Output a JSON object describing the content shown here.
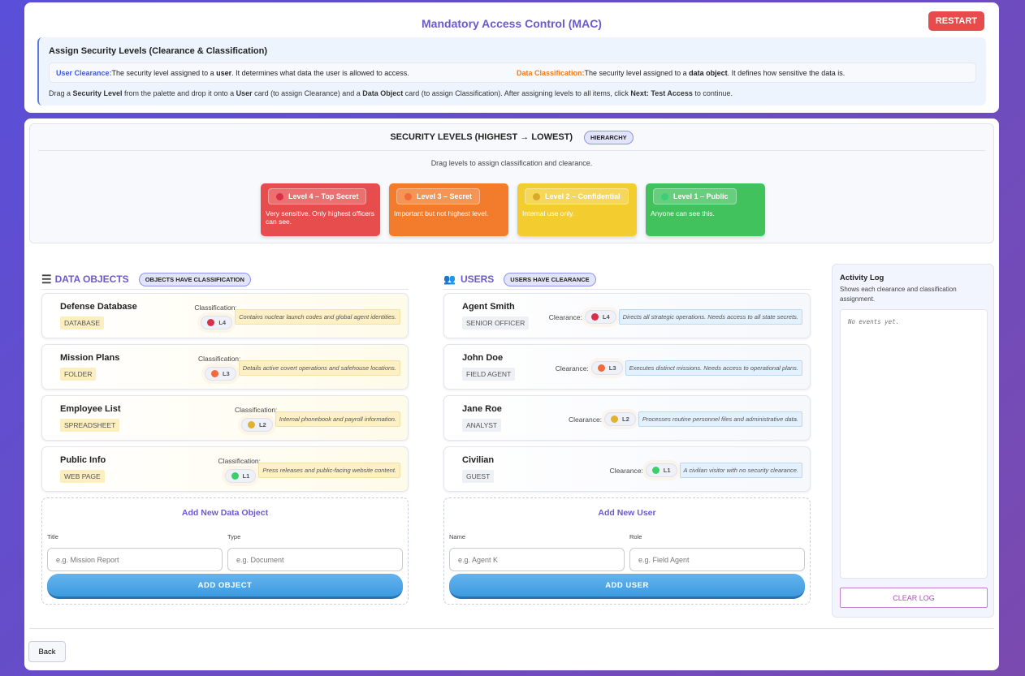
{
  "header": {
    "title": "Mandatory Access Control (MAC)",
    "restart_label": "RESTART"
  },
  "info": {
    "heading": "Assign Security Levels (Clearance & Classification)",
    "user_clearance_term": "User Clearance:",
    "user_clearance_text_a": "The security level assigned to a ",
    "user_clearance_bold": "user",
    "user_clearance_text_b": ". It determines what data the user is allowed to access.",
    "data_class_term": "Data Classification:",
    "data_class_text_a": "The security level assigned to a ",
    "data_class_bold": "data object",
    "data_class_text_b": ". It defines how sensitive the data is.",
    "instr": [
      "Drag a ",
      "Security Level",
      " from the palette and drop it onto a ",
      "User",
      " card (to assign Clearance) and a ",
      "Data Object",
      " card (to assign Classification). After assigning levels to all items, click ",
      "Next: Test Access",
      " to continue."
    ]
  },
  "palette": {
    "title": "SECURITY LEVELS (HIGHEST → LOWEST)",
    "badge": "HIERARCHY",
    "subtitle": "Drag levels to assign classification and clearance.",
    "levels": [
      {
        "label": "Level 4 – Top Secret",
        "desc": "Very sensitive. Only highest officers can see.",
        "color": "#e84d4d",
        "dot": "#d9304a"
      },
      {
        "label": "Level 3 – Secret",
        "desc": "Important but not highest level.",
        "color": "#f27b2c",
        "dot": "#f26a3a"
      },
      {
        "label": "Level 2 – Confidential",
        "desc": "Internal use only.",
        "color": "#f3cd30",
        "dot": "#d9a92a"
      },
      {
        "label": "Level 1 – Public",
        "desc": "Anyone can see this.",
        "color": "#42c25d",
        "dot": "#3bcf7a"
      }
    ]
  },
  "objects": {
    "title": "DATA OBJECTS",
    "badge": "OBJECTS HAVE CLASSIFICATION",
    "field_label": "Classification:",
    "items": [
      {
        "name": "Defense Database",
        "type": "DATABASE",
        "level": "L4",
        "dot": "#d9304a",
        "desc": "Contains nuclear launch codes and global agent identities."
      },
      {
        "name": "Mission Plans",
        "type": "FOLDER",
        "level": "L3",
        "dot": "#f26a3a",
        "desc": "Details active covert operations and safehouse locations."
      },
      {
        "name": "Employee List",
        "type": "SPREADSHEET",
        "level": "L2",
        "dot": "#e0b230",
        "desc": "Internal phonebook and payroll information."
      },
      {
        "name": "Public Info",
        "type": "WEB PAGE",
        "level": "L1",
        "dot": "#3bcf6a",
        "desc": "Press releases and public-facing website content."
      }
    ],
    "add": {
      "title": "Add New Data Object",
      "f1_label": "Title",
      "f1_placeholder": "e.g. Mission Report",
      "f2_label": "Type",
      "f2_placeholder": "e.g. Document",
      "button": "ADD OBJECT"
    }
  },
  "users": {
    "title": "USERS",
    "badge": "USERS HAVE CLEARANCE",
    "field_label": "Clearance:",
    "items": [
      {
        "name": "Agent Smith",
        "role": "SENIOR OFFICER",
        "level": "L4",
        "dot": "#d9304a",
        "desc": "Directs all strategic operations. Needs access to all state secrets."
      },
      {
        "name": "John Doe",
        "role": "FIELD AGENT",
        "level": "L3",
        "dot": "#f26a3a",
        "desc": "Executes distinct missions. Needs access to operational plans."
      },
      {
        "name": "Jane Roe",
        "role": "ANALYST",
        "level": "L2",
        "dot": "#e0b230",
        "desc": "Processes routine personnel files and administrative data."
      },
      {
        "name": "Civilian",
        "role": "GUEST",
        "level": "L1",
        "dot": "#3bcf6a",
        "desc": "A civilian visitor with no security clearance."
      }
    ],
    "add": {
      "title": "Add New User",
      "f1_label": "Name",
      "f1_placeholder": "e.g. Agent K",
      "f2_label": "Role",
      "f2_placeholder": "e.g. Field Agent",
      "button": "ADD USER"
    }
  },
  "log": {
    "title": "Activity Log",
    "subtitle": "Shows each clearance and classification assignment.",
    "empty": "No events yet.",
    "clear_label": "CLEAR LOG"
  },
  "footer": {
    "back_label": "Back"
  }
}
